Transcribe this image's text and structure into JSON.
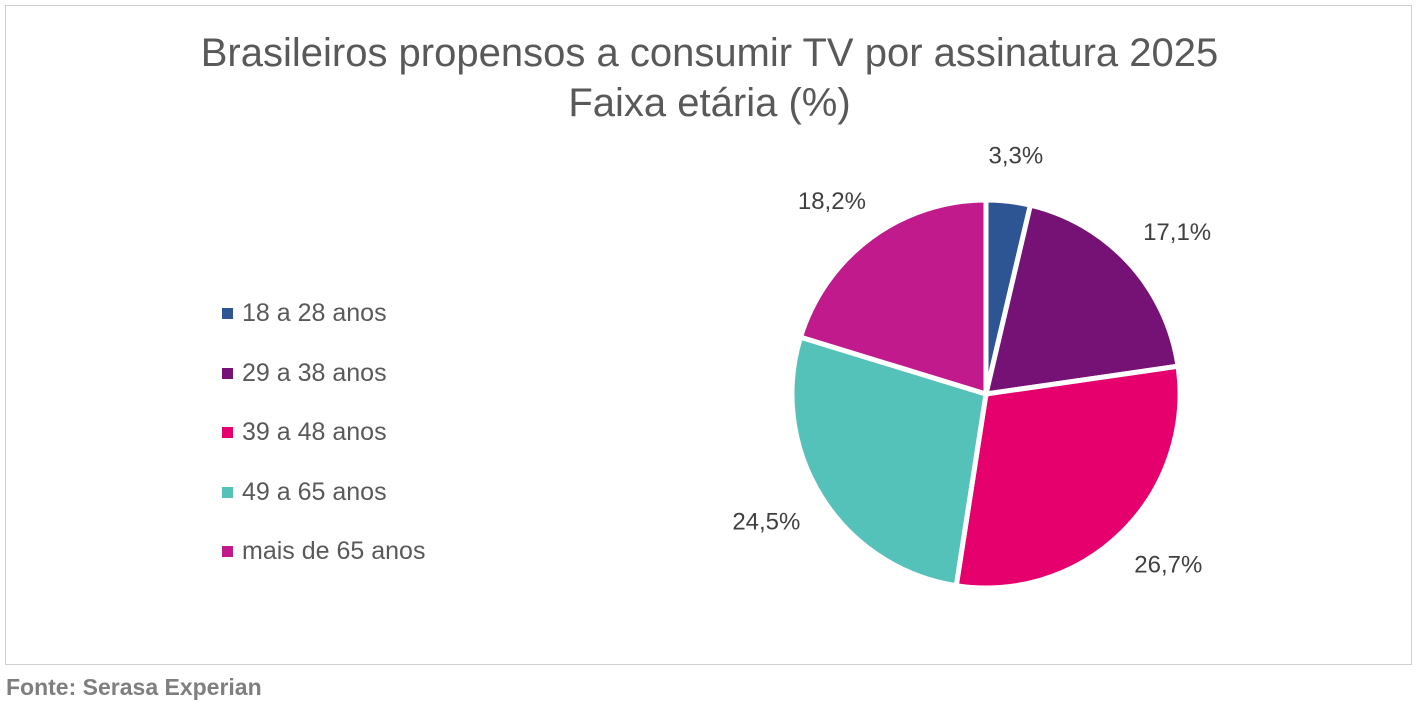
{
  "chart_data": {
    "type": "pie",
    "title": "Brasileiros propensos a consumir TV por assinatura 2025",
    "subtitle": "Faixa etária (%)",
    "categories": [
      "18 a 28 anos",
      "29 a 38 anos",
      "39 a 48 anos",
      "49 a 65 anos",
      "mais de 65 anos"
    ],
    "values": [
      3.3,
      17.1,
      26.7,
      24.5,
      18.2
    ],
    "labels": [
      "3,3%",
      "17,1%",
      "26,7%",
      "24,5%",
      "18,2%"
    ],
    "colors": [
      "#2E5593",
      "#761176",
      "#E5006D",
      "#54C2B8",
      "#C01A8C"
    ],
    "legend_position": "left"
  },
  "source": "Fonte: Serasa Experian"
}
